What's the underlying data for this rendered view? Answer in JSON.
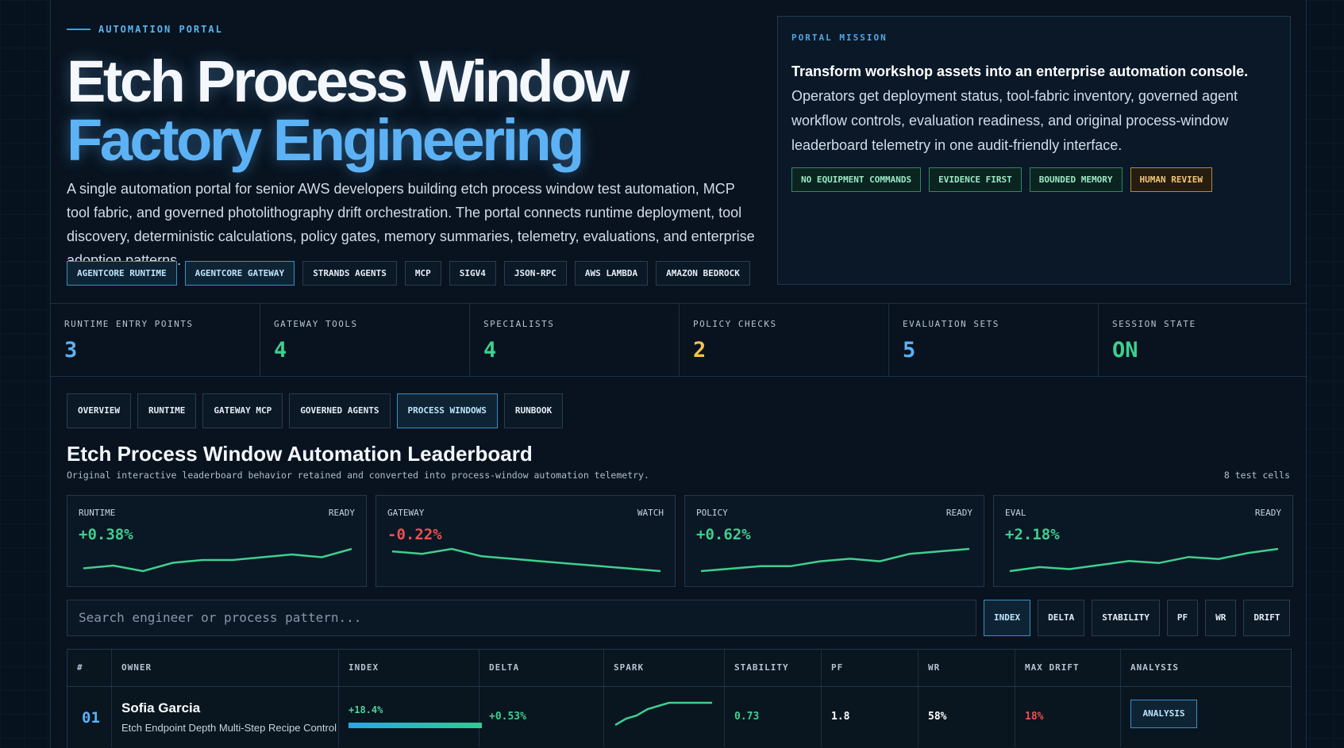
{
  "hero": {
    "eyebrow": "AUTOMATION PORTAL",
    "title_line1": "Etch Process Window",
    "title_line2": "Factory Engineering",
    "description": "A single automation portal for senior AWS developers building etch process window test automation, MCP tool fabric, and governed photolithography drift orchestration. The portal connects runtime deployment, tool discovery, deterministic calculations, policy gates, memory summaries, telemetry, evaluations, and enterprise adoption patterns.",
    "tags": [
      {
        "label": "AGENTCORE RUNTIME",
        "active": true
      },
      {
        "label": "AGENTCORE GATEWAY",
        "active": true
      },
      {
        "label": "STRANDS AGENTS",
        "active": false
      },
      {
        "label": "MCP",
        "active": false
      },
      {
        "label": "SIGV4",
        "active": false
      },
      {
        "label": "JSON-RPC",
        "active": false
      },
      {
        "label": "AWS LAMBDA",
        "active": false
      },
      {
        "label": "AMAZON BEDROCK",
        "active": false
      }
    ]
  },
  "mission": {
    "label": "PORTAL MISSION",
    "lead": "Transform workshop assets into an enterprise automation console.",
    "body": " Operators get deployment status, tool-fabric inventory, governed agent workflow controls, evaluation readiness, and original process-window leaderboard telemetry in one audit-friendly interface.",
    "tags": [
      {
        "label": "NO EQUIPMENT COMMANDS",
        "tone": "green"
      },
      {
        "label": "EVIDENCE FIRST",
        "tone": "green"
      },
      {
        "label": "BOUNDED MEMORY",
        "tone": "green"
      },
      {
        "label": "HUMAN REVIEW",
        "tone": "amber"
      }
    ]
  },
  "stats": [
    {
      "label": "RUNTIME ENTRY POINTS",
      "value": "3",
      "color": "#5cb2f4"
    },
    {
      "label": "GATEWAY TOOLS",
      "value": "4",
      "color": "#3fcf8e"
    },
    {
      "label": "SPECIALISTS",
      "value": "4",
      "color": "#3fcf8e"
    },
    {
      "label": "POLICY CHECKS",
      "value": "2",
      "color": "#f3c24e"
    },
    {
      "label": "EVALUATION SETS",
      "value": "5",
      "color": "#5cb2f4"
    },
    {
      "label": "SESSION STATE",
      "value": "ON",
      "color": "#3fcf8e"
    }
  ],
  "tabs": [
    {
      "label": "OVERVIEW",
      "active": false
    },
    {
      "label": "RUNTIME",
      "active": false
    },
    {
      "label": "GATEWAY MCP",
      "active": false
    },
    {
      "label": "GOVERNED AGENTS",
      "active": false
    },
    {
      "label": "PROCESS WINDOWS",
      "active": true
    },
    {
      "label": "RUNBOOK",
      "active": false
    }
  ],
  "leaderboard": {
    "title": "Etch Process Window Automation Leaderboard",
    "subtitle": "Original interactive leaderboard behavior retained and converted into process-window automation telemetry.",
    "count": "8 test cells"
  },
  "cards": [
    {
      "label": "RUNTIME",
      "state": "READY",
      "value": "+0.38%",
      "color": "#3fcf8e",
      "trend": [
        2,
        3,
        1,
        4,
        5,
        5,
        6,
        7,
        6,
        9
      ]
    },
    {
      "label": "GATEWAY",
      "state": "WATCH",
      "value": "-0.22%",
      "color": "#ef5050",
      "trend": [
        9,
        8,
        10,
        7,
        6,
        5,
        4,
        3,
        2,
        1
      ]
    },
    {
      "label": "POLICY",
      "state": "READY",
      "value": "+0.62%",
      "color": "#3fcf8e",
      "trend": [
        1,
        2,
        3,
        3,
        5,
        6,
        5,
        8,
        9,
        10
      ]
    },
    {
      "label": "EVAL",
      "state": "READY",
      "value": "+2.18%",
      "color": "#3fcf8e",
      "trend": [
        1,
        3,
        2,
        4,
        6,
        5,
        8,
        7,
        10,
        12
      ]
    }
  ],
  "search": {
    "placeholder": "Search engineer or process pattern..."
  },
  "filters": [
    {
      "label": "INDEX",
      "active": true
    },
    {
      "label": "DELTA",
      "active": false
    },
    {
      "label": "STABILITY",
      "active": false
    },
    {
      "label": "PF",
      "active": false
    },
    {
      "label": "WR",
      "active": false
    },
    {
      "label": "DRIFT",
      "active": false
    }
  ],
  "table": {
    "headers": [
      "#",
      "OWNER",
      "INDEX",
      "DELTA",
      "SPARK",
      "STABILITY",
      "PF",
      "WR",
      "MAX DRIFT",
      "ANALYSIS"
    ],
    "rows": [
      {
        "rank": "01",
        "owner": "Sofia Garcia",
        "pattern": "Etch Endpoint Depth Multi-Step Recipe Control",
        "index": "+18.4%",
        "index_fill": 1.0,
        "delta": "+0.53%",
        "spark": [
          1,
          3,
          4,
          6,
          7,
          8,
          8,
          8,
          8,
          8
        ],
        "stability": "0.73",
        "pf": "1.8",
        "wr": "58%",
        "max_drift": "18%",
        "analysis_label": "ANALYSIS"
      }
    ]
  },
  "colors": {
    "positive": "#3fcf8e",
    "negative": "#ef5050",
    "accent": "#5cb2f4"
  }
}
